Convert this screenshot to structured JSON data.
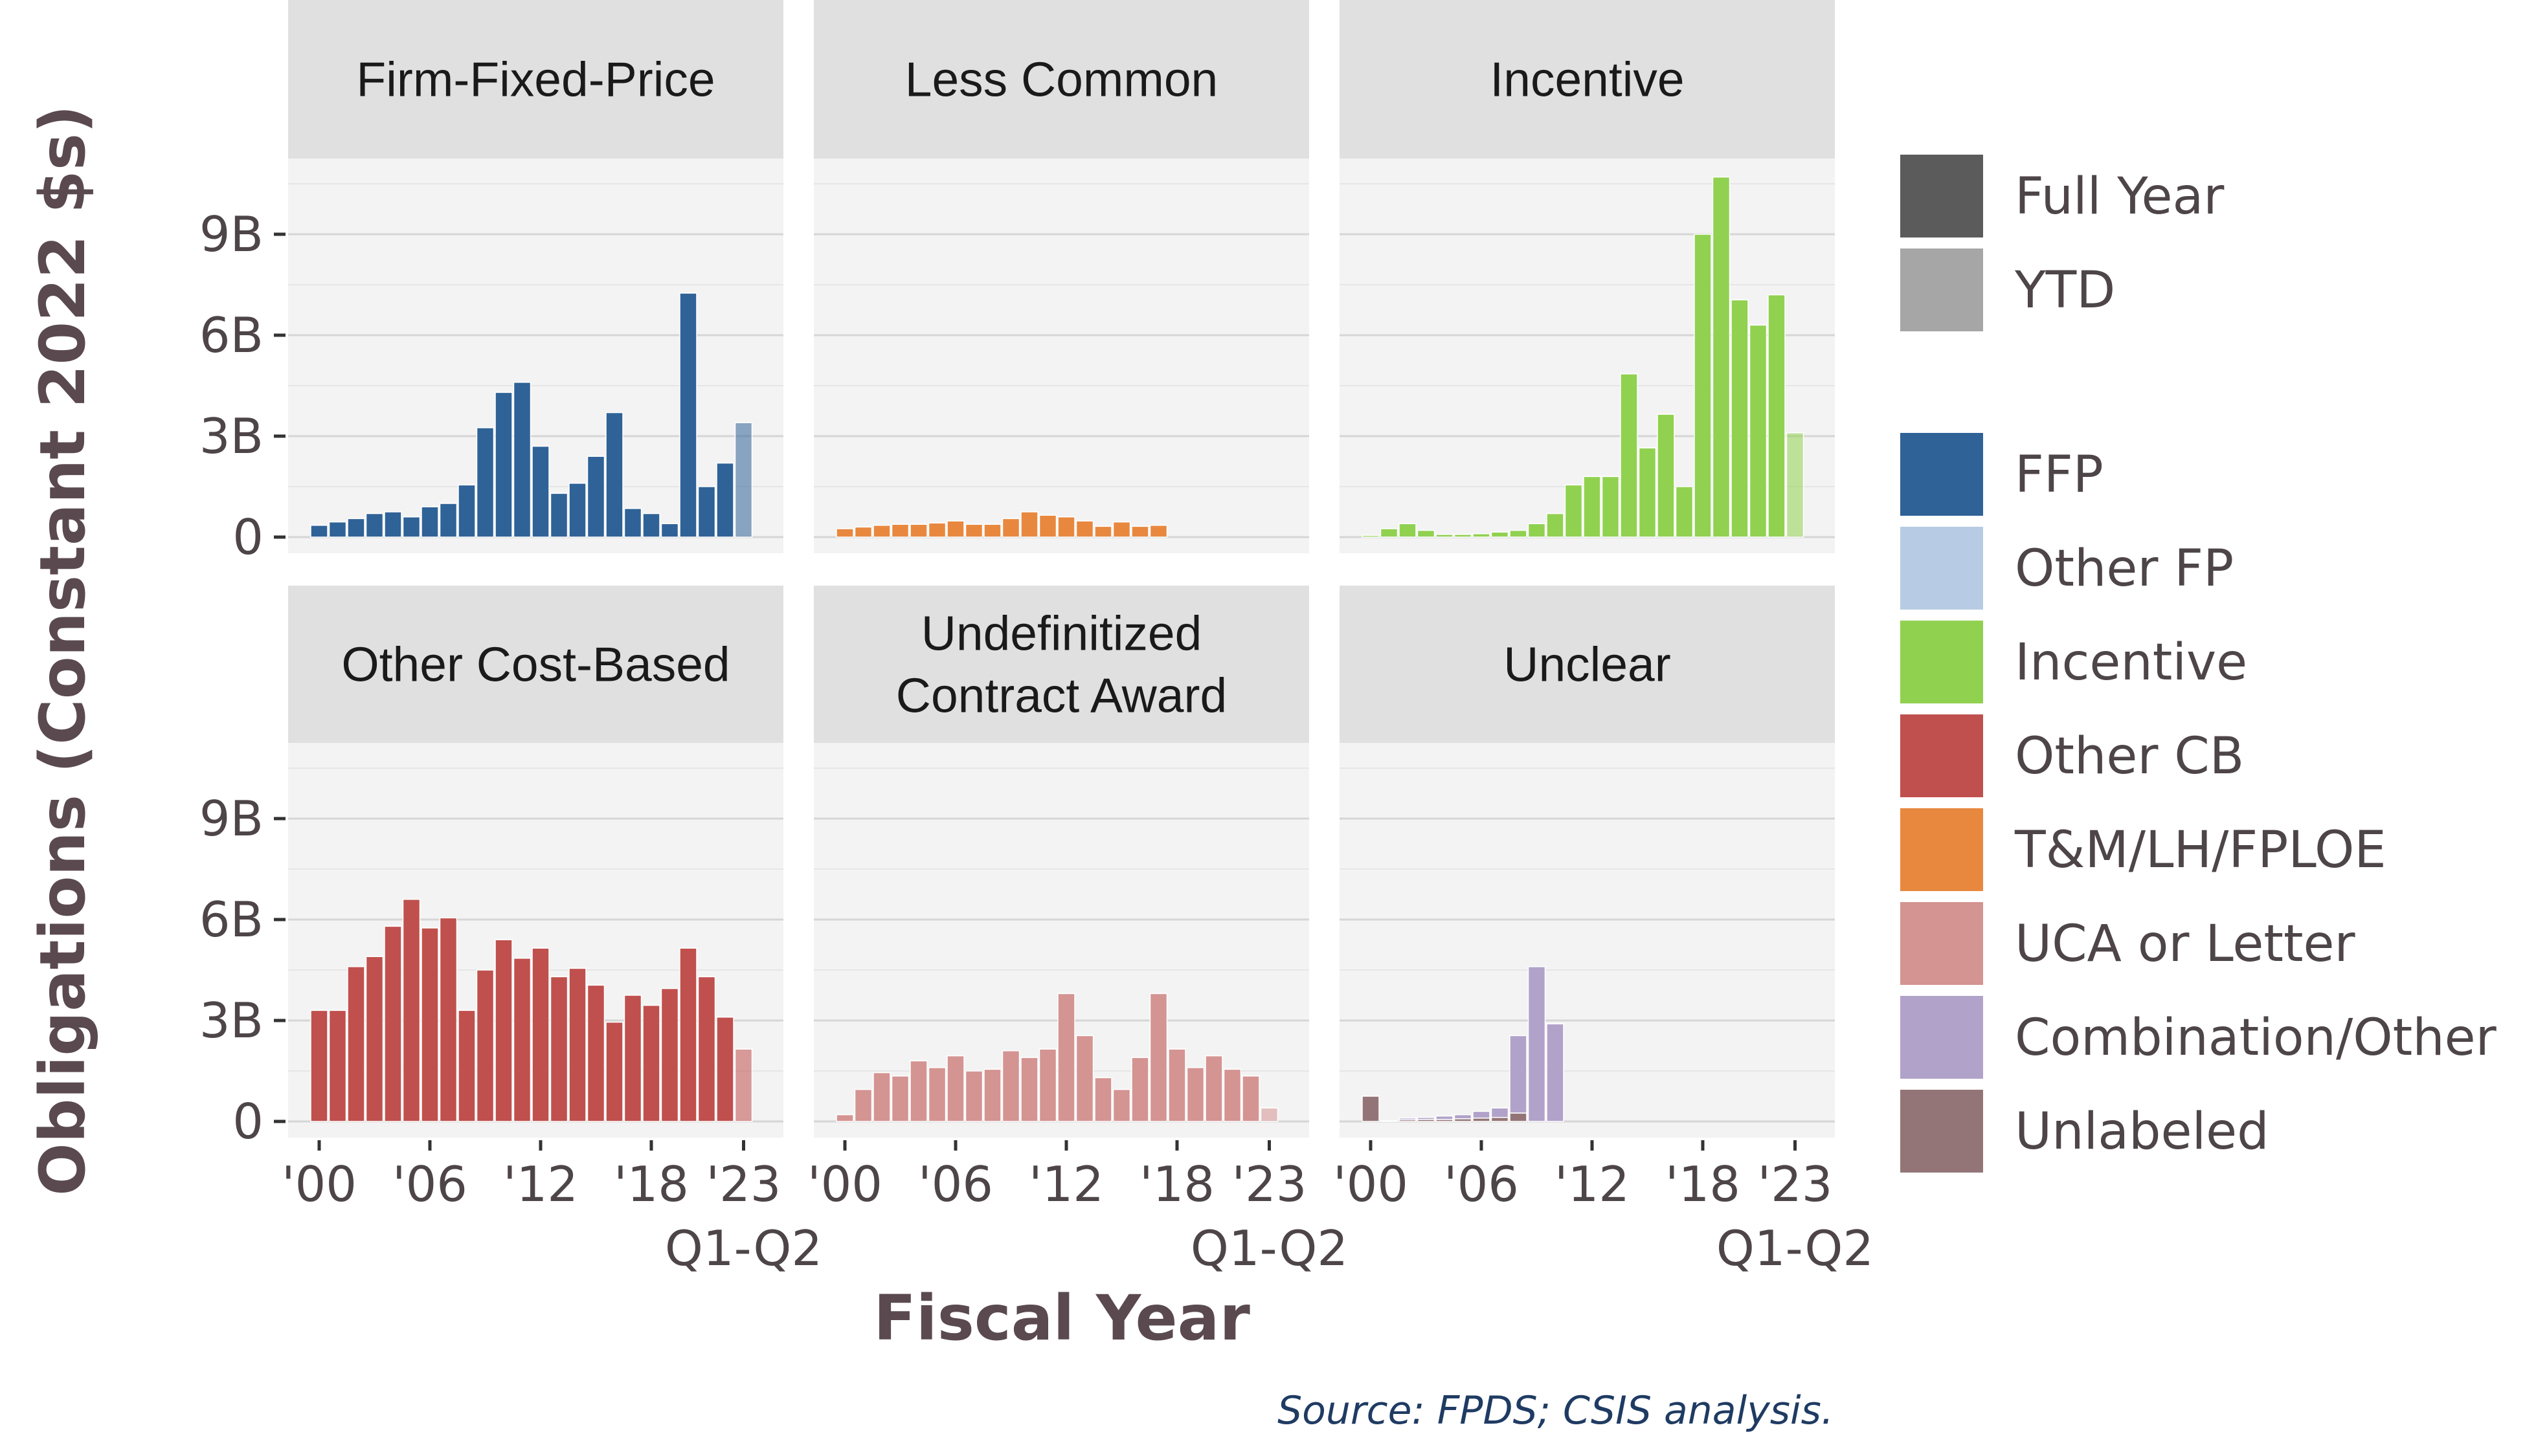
{
  "chart_data": {
    "type": "bar",
    "ylabel": "Obligations (Constant 2022 $s)",
    "xlabel": "Fiscal Year",
    "source": "Source: FPDS; CSIS analysis.",
    "x_tick_labels": [
      "'00",
      "'06",
      "'12",
      "'18",
      "'23"
    ],
    "x_tick_years": [
      2000,
      2006,
      2012,
      2018,
      2023
    ],
    "x_sub_label": "Q1-Q2",
    "y_tick_labels": [
      "0",
      "3B",
      "6B",
      "9B"
    ],
    "y_tick_values": [
      0,
      3,
      6,
      9
    ],
    "ylim": [
      0,
      11.2
    ],
    "units": "billions",
    "years": [
      2000,
      2001,
      2002,
      2003,
      2004,
      2005,
      2006,
      2007,
      2008,
      2009,
      2010,
      2011,
      2012,
      2013,
      2014,
      2015,
      2016,
      2017,
      2018,
      2019,
      2020,
      2021,
      2022,
      2023
    ],
    "ytd_year": 2023,
    "legend_status": [
      {
        "label": "Full Year",
        "color": "#5b5b5b"
      },
      {
        "label": "YTD",
        "color": "#a6a6a6"
      }
    ],
    "legend_types": [
      {
        "label": "FFP",
        "color": "#2f6297"
      },
      {
        "label": "Other FP",
        "color": "#b7cce4"
      },
      {
        "label": "Incentive",
        "color": "#91d150"
      },
      {
        "label": "Other CB",
        "color": "#c0504d"
      },
      {
        "label": "T&M/LH/FPLOE",
        "color": "#e8883f"
      },
      {
        "label": "UCA or Letter",
        "color": "#d49492"
      },
      {
        "label": "Combination/Other",
        "color": "#b1a2ca"
      },
      {
        "label": "Unlabeled",
        "color": "#947577"
      }
    ],
    "facets": [
      {
        "title": "Firm-Fixed-Price",
        "series": [
          {
            "name": "FFP",
            "color": "#2f6297",
            "values": [
              0.35,
              0.45,
              0.55,
              0.7,
              0.75,
              0.6,
              0.9,
              1.0,
              1.55,
              3.25,
              4.3,
              4.6,
              2.7,
              1.3,
              1.6,
              2.4,
              3.7,
              0.85,
              0.7,
              0.4,
              7.25,
              1.5,
              2.2,
              3.4
            ]
          }
        ]
      },
      {
        "title": "Less Common",
        "series": [
          {
            "name": "T&M/LH/FPLOE",
            "color": "#e8883f",
            "values": [
              0.25,
              0.3,
              0.35,
              0.38,
              0.38,
              0.42,
              0.48,
              0.38,
              0.38,
              0.55,
              0.75,
              0.65,
              0.6,
              0.48,
              0.32,
              0.45,
              0.32,
              0.35,
              null,
              null,
              null,
              null,
              null,
              null
            ]
          }
        ]
      },
      {
        "title": "Incentive",
        "series": [
          {
            "name": "Incentive",
            "color": "#91d150",
            "values": [
              0.05,
              0.25,
              0.4,
              0.2,
              0.08,
              0.08,
              0.1,
              0.15,
              0.2,
              0.4,
              0.7,
              1.55,
              1.8,
              1.8,
              4.85,
              2.65,
              3.65,
              1.5,
              9.0,
              10.7,
              7.05,
              6.3,
              7.2,
              3.1
            ]
          }
        ]
      },
      {
        "title": "Other Cost-Based",
        "series": [
          {
            "name": "Other CB",
            "color": "#c0504d",
            "values": [
              3.3,
              3.3,
              4.6,
              4.9,
              5.8,
              6.6,
              5.75,
              6.05,
              3.3,
              4.5,
              5.4,
              4.85,
              5.15,
              4.3,
              4.55,
              4.05,
              2.95,
              3.75,
              3.45,
              3.95,
              5.15,
              4.3,
              3.1,
              2.15
            ]
          }
        ]
      },
      {
        "title": "Undefinitized\nContract Award",
        "series": [
          {
            "name": "UCA or Letter",
            "color": "#d49492",
            "values": [
              0.2,
              0.95,
              1.45,
              1.35,
              1.8,
              1.6,
              1.95,
              1.5,
              1.55,
              2.1,
              1.9,
              2.15,
              3.8,
              2.55,
              1.3,
              0.95,
              1.9,
              3.8,
              2.15,
              1.6,
              1.95,
              1.55,
              1.35,
              0.4
            ]
          }
        ]
      },
      {
        "title": "Unclear",
        "series": [
          {
            "name": "Unlabeled",
            "color": "#947577",
            "values": [
              0.75,
              0.02,
              0.05,
              0.06,
              0.06,
              0.08,
              0.1,
              0.12,
              0.25,
              0.0,
              null,
              null,
              null,
              null,
              null,
              null,
              null,
              null,
              null,
              null,
              null,
              null,
              null,
              null
            ]
          },
          {
            "name": "Combination/Other",
            "color": "#b1a2ca",
            "values": [
              0.0,
              0.0,
              0.05,
              0.06,
              0.1,
              0.12,
              0.2,
              0.28,
              2.3,
              4.6,
              2.9,
              null,
              null,
              null,
              null,
              null,
              null,
              null,
              null,
              null,
              null,
              null,
              null,
              null
            ]
          }
        ]
      }
    ]
  }
}
